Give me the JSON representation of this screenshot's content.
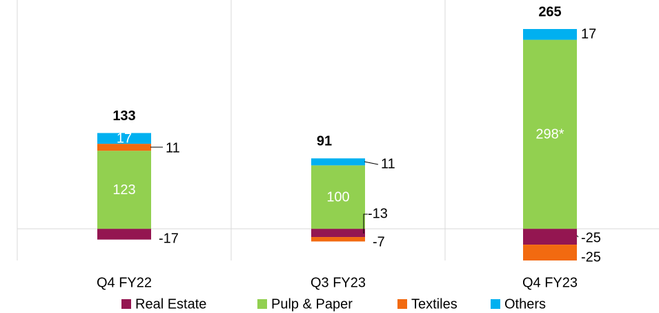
{
  "chart_data": {
    "type": "stacked_bar",
    "categories": [
      "Q4 FY22",
      "Q3 FY23",
      "Q4 FY23"
    ],
    "series": [
      {
        "name": "Real Estate",
        "color": "#941651",
        "values": [
          -17,
          -13,
          -25
        ]
      },
      {
        "name": "Pulp & Paper",
        "color": "#92d050",
        "values": [
          123,
          100,
          298
        ],
        "value_labels": [
          "123",
          "100",
          "298*"
        ]
      },
      {
        "name": "Textiles",
        "color": "#f26a10",
        "values": [
          11,
          -7,
          -25
        ]
      },
      {
        "name": "Others",
        "color": "#00b0f0",
        "values": [
          17,
          11,
          17
        ]
      }
    ],
    "totals": [
      133,
      91,
      265
    ],
    "legend": "bottom"
  }
}
